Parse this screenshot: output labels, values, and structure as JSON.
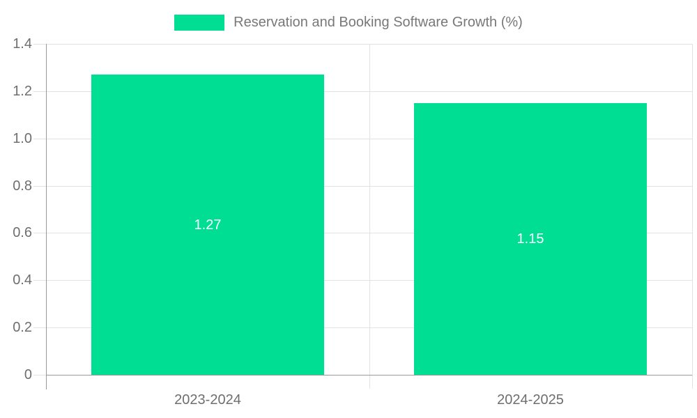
{
  "chart_data": {
    "type": "bar",
    "categories": [
      "2023-2024",
      "2024-2025"
    ],
    "series": [
      {
        "name": "Reservation and Booking Software Growth (%)",
        "values": [
          1.27,
          1.15
        ]
      }
    ],
    "bar_value_labels": [
      "1.27",
      "1.15"
    ],
    "ylim": [
      0,
      1.4
    ],
    "ytick_labels": [
      "0",
      "0.2",
      "0.4",
      "0.6",
      "0.8",
      "1.0",
      "1.2",
      "1.4"
    ],
    "xlabel": "",
    "ylabel": "",
    "grid": "horizontal gridlines on, vertical category-boundary lines on",
    "legend": {
      "position": "top-center",
      "items": [
        "Reservation and Booking Software Growth (%)"
      ]
    }
  },
  "colors": {
    "bar": "#00DE94",
    "axis_line": "#999999",
    "grid_line": "#E2E2E2",
    "tick_text": "#6E6E6E",
    "legend_text": "#787878",
    "bar_label_text": "#FFFFFF",
    "background": "#FFFFFF"
  }
}
